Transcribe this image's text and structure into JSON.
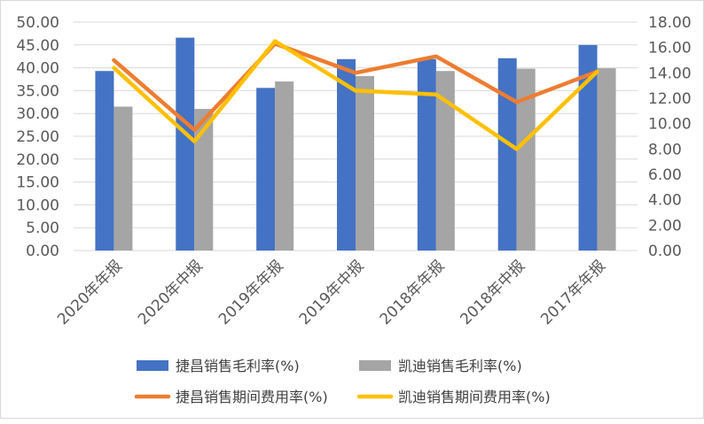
{
  "chart_data": {
    "type": "bar",
    "categories": [
      "2020年年报",
      "2020年中报",
      "2019年年报",
      "2019年中报",
      "2018年年报",
      "2018年中报",
      "2017年年报"
    ],
    "bar_series": [
      {
        "name": "捷昌销售毛利率(%)",
        "color": "#4472C4",
        "axis": "left",
        "values": [
          39.3,
          46.6,
          35.6,
          41.9,
          41.9,
          42.1,
          45.0
        ]
      },
      {
        "name": "凯迪销售毛利率(%)",
        "color": "#A5A5A5",
        "axis": "left",
        "values": [
          31.5,
          31.0,
          37.0,
          38.2,
          39.3,
          39.8,
          39.9
        ]
      }
    ],
    "line_series": [
      {
        "name": "捷昌销售期间费用率(%)",
        "color": "#ED7D31",
        "axis": "right",
        "values": [
          15.0,
          9.5,
          16.3,
          14.0,
          15.3,
          11.7,
          14.1
        ]
      },
      {
        "name": "凯迪销售期间费用率(%)",
        "color": "#FFC000",
        "axis": "right",
        "values": [
          14.4,
          8.6,
          16.5,
          12.6,
          12.3,
          8.0,
          14.1
        ]
      }
    ],
    "y_left": {
      "min": 0,
      "max": 50,
      "ticks": [
        "0.00",
        "5.00",
        "10.00",
        "15.00",
        "20.00",
        "25.00",
        "30.00",
        "35.00",
        "40.00",
        "45.00",
        "50.00"
      ]
    },
    "y_right": {
      "min": 0,
      "max": 18,
      "ticks": [
        "0.00",
        "2.00",
        "4.00",
        "6.00",
        "8.00",
        "10.00",
        "12.00",
        "14.00",
        "16.00",
        "18.00"
      ]
    },
    "grid": true,
    "legend_position": "bottom"
  }
}
